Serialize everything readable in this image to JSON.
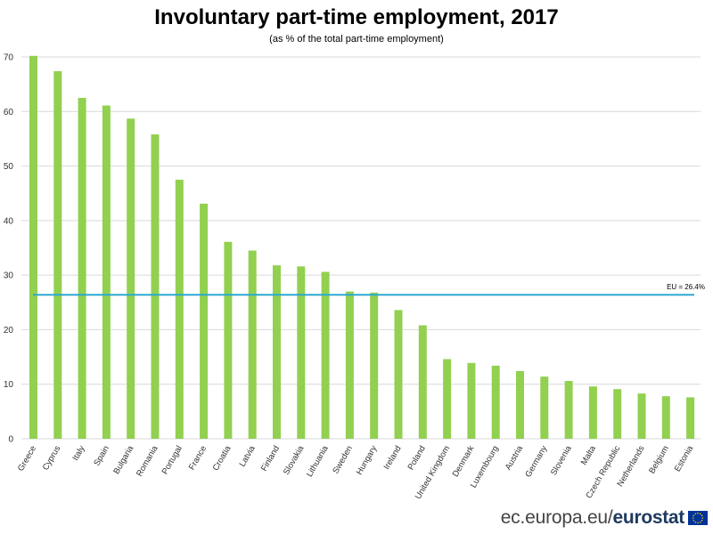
{
  "chart_data": {
    "type": "bar",
    "title": "Involuntary part-time employment, 2017",
    "subtitle": "(as % of the total part-time employment)",
    "xlabel": "",
    "ylabel": "",
    "ylim": [
      0,
      70
    ],
    "yticks": [
      0,
      10,
      20,
      30,
      40,
      50,
      60,
      70
    ],
    "grid": true,
    "categories": [
      "Greece",
      "Cyprus",
      "Italy",
      "Spain",
      "Bulgaria",
      "Romania",
      "Portugal",
      "France",
      "Croatia",
      "Latvia",
      "Finland",
      "Slovakia",
      "Lithuania",
      "Sweden",
      "Hungary",
      "Ireland",
      "Poland",
      "United Kingdom",
      "Denmark",
      "Luxembourg",
      "Austria",
      "Germany",
      "Slovenia",
      "Malta",
      "Czech Republic",
      "Netherlands",
      "Belgium",
      "Estonia"
    ],
    "values": [
      70.2,
      67.4,
      62.5,
      61.1,
      58.7,
      55.8,
      47.5,
      43.1,
      36.1,
      34.5,
      31.8,
      31.6,
      30.6,
      27.0,
      26.8,
      23.6,
      20.8,
      14.6,
      13.9,
      13.4,
      12.4,
      11.4,
      10.6,
      9.6,
      9.1,
      8.3,
      7.8,
      7.6
    ],
    "reference_line": {
      "value": 26.4,
      "label": "EU = 26.4%"
    },
    "colors": {
      "bar": "#92d050",
      "reference_line": "#2ea8d0",
      "grid": "#d9d9d9"
    }
  },
  "footer": {
    "domain": "ec.europa.eu/",
    "brand": "eurostat",
    "flag_icon": "eu-flag-icon"
  }
}
